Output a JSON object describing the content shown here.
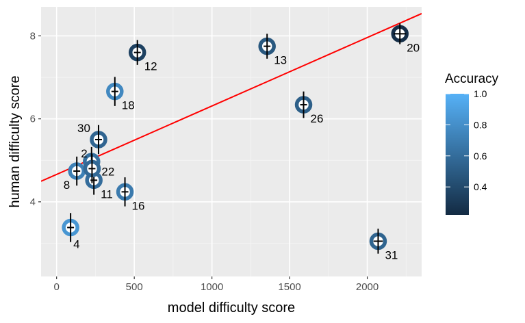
{
  "chart_data": {
    "type": "scatter",
    "xlabel": "model difficulty score",
    "ylabel": "human difficulty score",
    "xlim": [
      -100,
      2350
    ],
    "ylim": [
      2.2,
      8.7
    ],
    "x_ticks": [
      0,
      500,
      1000,
      1500,
      2000
    ],
    "y_ticks": [
      4,
      6,
      8
    ],
    "grid": true,
    "legend": {
      "title": "Accuracy",
      "position": "right",
      "range": [
        0.22,
        1.0
      ],
      "ticks": [
        0.4,
        0.6,
        0.8,
        1.0
      ],
      "tick_labels": [
        "0.4",
        "0.6",
        "0.8",
        "1.0"
      ],
      "color_low": "#132B43",
      "color_high": "#56B1F7"
    },
    "regression_line": {
      "intercept": 4.66,
      "slope": 0.00165,
      "color": "#ff0000"
    },
    "points": [
      {
        "label": "2",
        "x": 225,
        "y": 4.97,
        "accuracy": 0.62,
        "y_err": 0.35,
        "x_err": 10,
        "label_pos": "left"
      },
      {
        "label": "4",
        "x": 90,
        "y": 3.38,
        "accuracy": 0.84,
        "y_err": 0.35,
        "x_err": 10,
        "label_pos": "below"
      },
      {
        "label": "8",
        "x": 130,
        "y": 4.74,
        "accuracy": 0.72,
        "y_err": 0.35,
        "x_err": 10,
        "label_pos": "below-left"
      },
      {
        "label": "11",
        "x": 240,
        "y": 4.52,
        "accuracy": 0.6,
        "y_err": 0.35,
        "x_err": 10,
        "label_pos": "below-right"
      },
      {
        "label": "12",
        "x": 520,
        "y": 7.6,
        "accuracy": 0.35,
        "y_err": 0.3,
        "x_err": 20,
        "label_pos": "below-right"
      },
      {
        "label": "13",
        "x": 1355,
        "y": 7.75,
        "accuracy": 0.48,
        "y_err": 0.3,
        "x_err": 20,
        "label_pos": "below-right"
      },
      {
        "label": "16",
        "x": 440,
        "y": 4.24,
        "accuracy": 0.68,
        "y_err": 0.35,
        "x_err": 15,
        "label_pos": "below-right"
      },
      {
        "label": "18",
        "x": 375,
        "y": 6.66,
        "accuracy": 0.76,
        "y_err": 0.35,
        "x_err": 15,
        "label_pos": "below-right"
      },
      {
        "label": "20",
        "x": 2210,
        "y": 8.05,
        "accuracy": 0.24,
        "y_err": 0.25,
        "x_err": 40,
        "label_pos": "below-right"
      },
      {
        "label": "22",
        "x": 228,
        "y": 4.8,
        "accuracy": 0.58,
        "y_err": 0.35,
        "x_err": 10,
        "label_pos": "right"
      },
      {
        "label": "26",
        "x": 1590,
        "y": 6.34,
        "accuracy": 0.52,
        "y_err": 0.32,
        "x_err": 20,
        "label_pos": "below-right"
      },
      {
        "label": "30",
        "x": 270,
        "y": 5.5,
        "accuracy": 0.56,
        "y_err": 0.35,
        "x_err": 10,
        "label_pos": "above-left"
      },
      {
        "label": "31",
        "x": 2070,
        "y": 3.05,
        "accuracy": 0.55,
        "y_err": 0.3,
        "x_err": 30,
        "label_pos": "below-right"
      }
    ]
  }
}
